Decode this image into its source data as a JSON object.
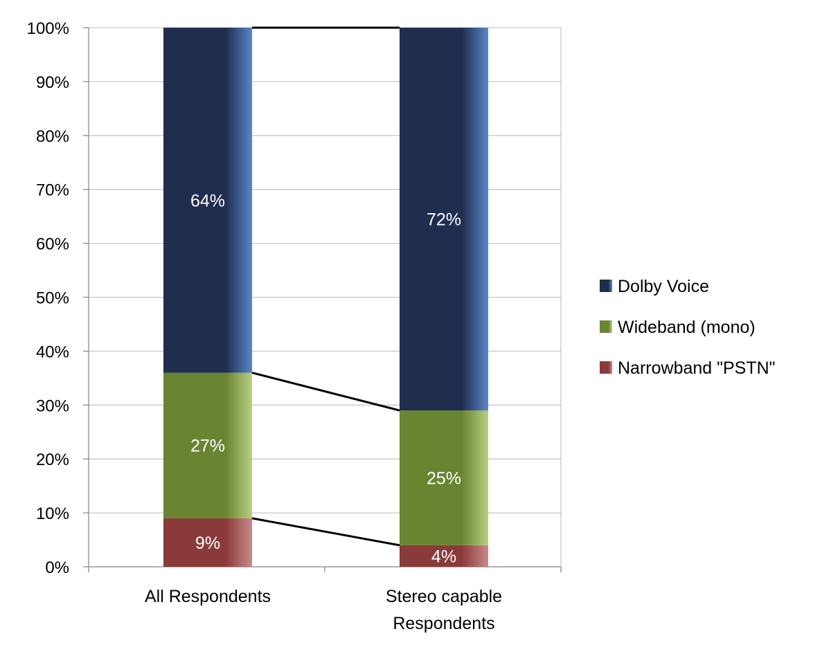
{
  "chart_data": {
    "type": "bar",
    "stacked": true,
    "percent": true,
    "categories": [
      [
        "All Respondents"
      ],
      [
        "Stereo capable",
        "Respondents"
      ]
    ],
    "series": [
      {
        "name": "Narrowband \"PSTN\"",
        "values": [
          9,
          4
        ],
        "labels": [
          "9%",
          "4%"
        ],
        "color": "#8b3a3a",
        "color_light": "#c98a8a"
      },
      {
        "name": "Wideband (mono)",
        "values": [
          27,
          25
        ],
        "labels": [
          "27%",
          "25%"
        ],
        "color": "#6a8432",
        "color_light": "#b8cf80"
      },
      {
        "name": "Dolby Voice",
        "values": [
          64,
          72
        ],
        "labels": [
          "64%",
          "72%"
        ],
        "color": "#1f2d4f",
        "color_light": "#5a86c8"
      }
    ],
    "legend_order": [
      2,
      1,
      0
    ],
    "ylim": [
      0,
      100
    ],
    "yticks": [
      "0%",
      "10%",
      "20%",
      "30%",
      "40%",
      "50%",
      "60%",
      "70%",
      "80%",
      "90%",
      "100%"
    ],
    "grid": true,
    "legend": "right",
    "series_lines": true
  }
}
